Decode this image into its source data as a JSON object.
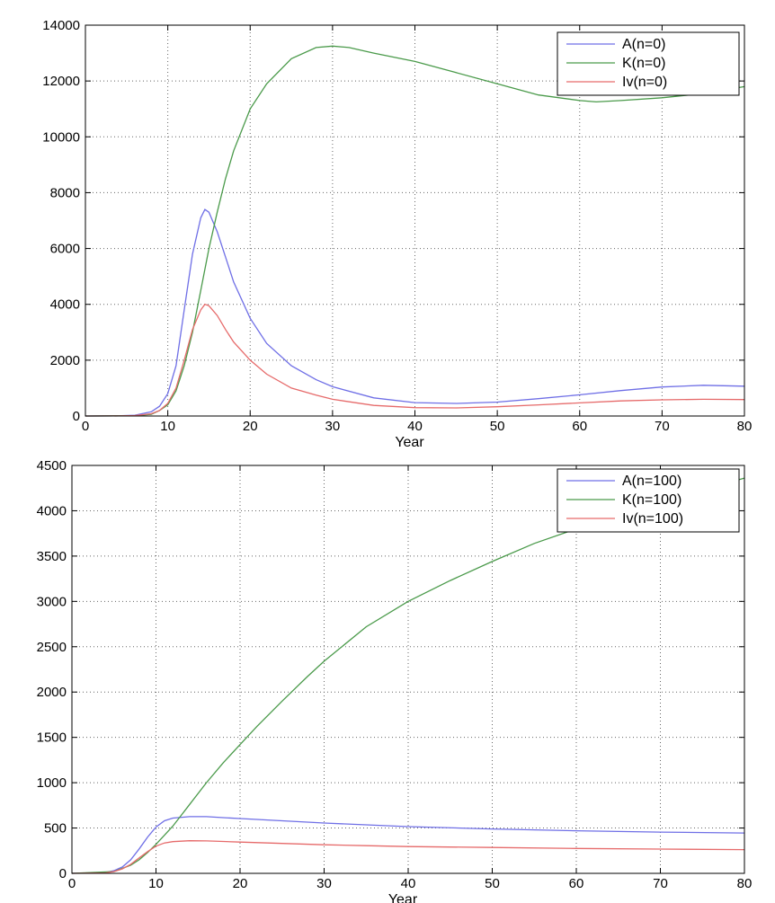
{
  "colors": {
    "A": "#6f6fe6",
    "K": "#4a9a4a",
    "Iv": "#e66a6a"
  },
  "chart_data": [
    {
      "type": "line",
      "xlabel": "Year",
      "ylabel": "",
      "xlim": [
        0,
        80
      ],
      "ylim": [
        0,
        14000
      ],
      "xticks": [
        0,
        10,
        20,
        30,
        40,
        50,
        60,
        70,
        80
      ],
      "yticks": [
        0,
        2000,
        4000,
        6000,
        8000,
        10000,
        12000,
        14000
      ],
      "grid": true,
      "legend": "top-right",
      "series": [
        {
          "name": "A(n=0)",
          "color_key": "A",
          "x": [
            0,
            4,
            6,
            8,
            9,
            10,
            11,
            12,
            13,
            14,
            14.5,
            15,
            16,
            17,
            18,
            20,
            22,
            25,
            28,
            30,
            35,
            40,
            45,
            50,
            55,
            60,
            65,
            70,
            75,
            80
          ],
          "y": [
            0,
            5,
            30,
            150,
            350,
            800,
            1800,
            3800,
            5800,
            7100,
            7400,
            7300,
            6600,
            5700,
            4800,
            3500,
            2600,
            1800,
            1300,
            1050,
            650,
            480,
            450,
            500,
            620,
            760,
            910,
            1040,
            1100,
            1070
          ]
        },
        {
          "name": "K(n=0)",
          "color_key": "K",
          "x": [
            0,
            6,
            8,
            9,
            10,
            11,
            12,
            13,
            14,
            15,
            16,
            17,
            18,
            20,
            22,
            25,
            28,
            30,
            32,
            35,
            40,
            45,
            50,
            55,
            60,
            62,
            65,
            70,
            75,
            80
          ],
          "y": [
            0,
            10,
            60,
            200,
            400,
            900,
            1800,
            3000,
            4500,
            6000,
            7300,
            8500,
            9500,
            11000,
            11900,
            12800,
            13200,
            13250,
            13200,
            13000,
            12700,
            12300,
            11900,
            11500,
            11300,
            11250,
            11300,
            11400,
            11550,
            11800
          ]
        },
        {
          "name": "Iv(n=0)",
          "color_key": "Iv",
          "x": [
            0,
            4,
            6,
            8,
            9,
            10,
            11,
            12,
            13,
            14,
            14.5,
            15,
            16,
            17,
            18,
            20,
            22,
            25,
            28,
            30,
            35,
            40,
            45,
            50,
            55,
            60,
            65,
            70,
            75,
            80
          ],
          "y": [
            0,
            3,
            15,
            80,
            200,
            450,
            1000,
            2000,
            3100,
            3800,
            4000,
            3950,
            3600,
            3100,
            2650,
            2000,
            1500,
            1000,
            750,
            600,
            380,
            300,
            290,
            330,
            400,
            470,
            540,
            580,
            600,
            590
          ]
        }
      ]
    },
    {
      "type": "line",
      "xlabel": "Year",
      "ylabel": "",
      "xlim": [
        0,
        80
      ],
      "ylim": [
        0,
        4500
      ],
      "xticks": [
        0,
        10,
        20,
        30,
        40,
        50,
        60,
        70,
        80
      ],
      "yticks": [
        0,
        500,
        1000,
        1500,
        2000,
        2500,
        3000,
        3500,
        4000,
        4500
      ],
      "grid": true,
      "legend": "top-right",
      "series": [
        {
          "name": "A(n=100)",
          "color_key": "A",
          "x": [
            0,
            4,
            5,
            6,
            7,
            8,
            9,
            10,
            11,
            12,
            14,
            16,
            18,
            20,
            25,
            30,
            35,
            40,
            50,
            60,
            70,
            80
          ],
          "y": [
            0,
            10,
            30,
            70,
            150,
            270,
            400,
            510,
            580,
            610,
            625,
            625,
            615,
            605,
            580,
            555,
            535,
            515,
            490,
            470,
            455,
            445
          ]
        },
        {
          "name": "K(n=100)",
          "color_key": "K",
          "x": [
            0,
            5,
            7,
            8,
            9,
            10,
            11,
            12,
            13,
            14,
            16,
            18,
            20,
            22,
            25,
            28,
            30,
            35,
            40,
            45,
            50,
            55,
            60,
            65,
            70,
            75,
            80
          ],
          "y": [
            0,
            20,
            90,
            150,
            230,
            320,
            420,
            520,
            640,
            760,
            1000,
            1220,
            1420,
            1620,
            1900,
            2170,
            2340,
            2720,
            3000,
            3230,
            3440,
            3640,
            3800,
            3950,
            4100,
            4230,
            4360
          ]
        },
        {
          "name": "Iv(n=100)",
          "color_key": "Iv",
          "x": [
            0,
            4,
            5,
            6,
            7,
            8,
            9,
            10,
            11,
            12,
            14,
            16,
            18,
            20,
            25,
            30,
            35,
            40,
            50,
            60,
            70,
            80
          ],
          "y": [
            0,
            5,
            20,
            50,
            100,
            170,
            240,
            300,
            335,
            350,
            360,
            358,
            352,
            345,
            330,
            315,
            305,
            295,
            285,
            275,
            268,
            262
          ]
        }
      ]
    }
  ]
}
